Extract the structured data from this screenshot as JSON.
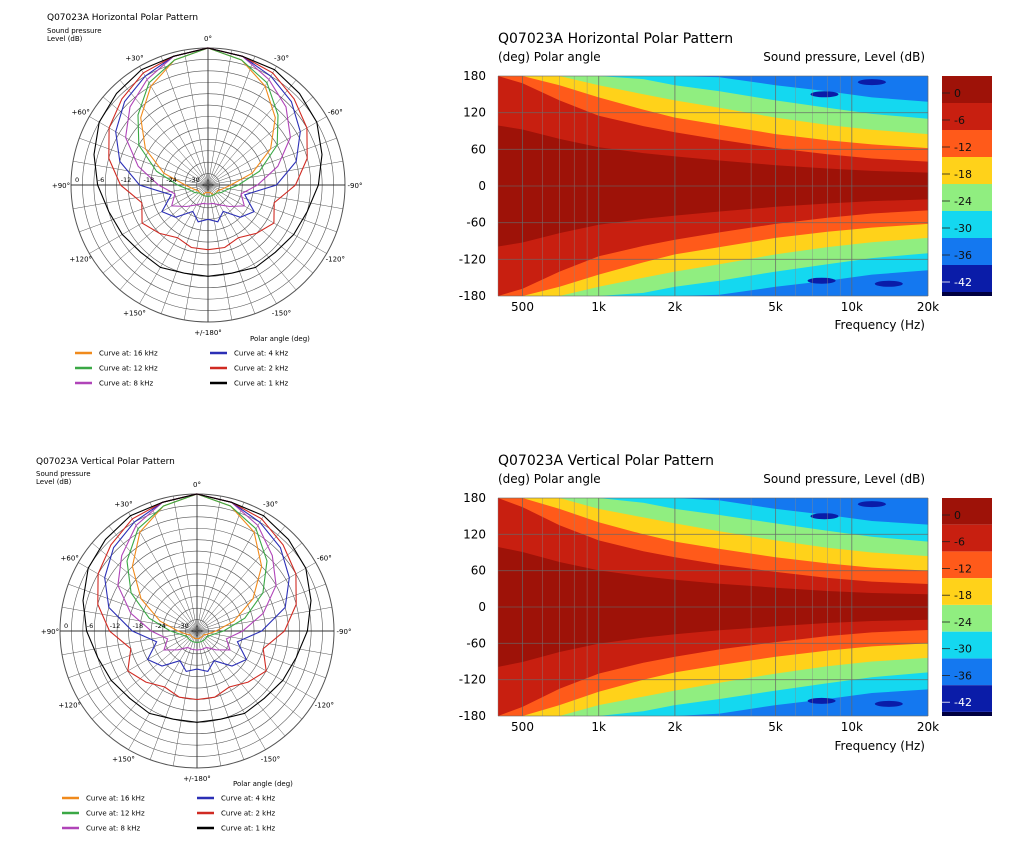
{
  "colors": {
    "curve_16k": "#f08a1c",
    "curve_12k": "#3aa845",
    "curve_8k": "#b044b8",
    "curve_4k": "#2b2fb5",
    "curve_2k": "#d02a22",
    "curve_1k": "#000000",
    "grid": "#555555"
  },
  "chart_data": [
    {
      "type": "polar",
      "title": "Q07023A Horizontal Polar Pattern",
      "rlabel_line1": "Sound pressure",
      "rlabel_line2": "Level  (dB)",
      "angle_axis_label": "Polar angle  (deg)",
      "angle_labels": [
        "0°",
        "-30°",
        "-60°",
        "-90°",
        "-120°",
        "-150°",
        "+/-180°",
        "+150°",
        "+120°",
        "+90°",
        "+60°",
        "+30°"
      ],
      "radial_labels": [
        "0",
        "-6",
        "-12",
        "-18",
        "-24",
        "-30"
      ],
      "rlim": [
        -36,
        0
      ],
      "legend": [
        "Curve at: 16 kHz",
        "Curve at: 12 kHz",
        "Curve at: 8 kHz",
        "Curve at: 4 kHz",
        "Curve at: 2 kHz",
        "Curve at: 1 kHz"
      ],
      "series": [
        {
          "name": "Curve at: 16 kHz",
          "angles": [
            0,
            15,
            30,
            45,
            60,
            75,
            90,
            105,
            120,
            135,
            150,
            165,
            180
          ],
          "values": [
            0,
            -2,
            -6,
            -11,
            -17,
            -24,
            -30,
            -32,
            -33,
            -33,
            -33,
            -34,
            -34
          ]
        },
        {
          "name": "Curve at: 12 kHz",
          "angles": [
            0,
            15,
            30,
            45,
            60,
            75,
            90,
            105,
            120,
            135,
            150,
            165,
            180
          ],
          "values": [
            0,
            -2,
            -5,
            -10,
            -15,
            -22,
            -28,
            -31,
            -32,
            -33,
            -33,
            -33,
            -33
          ]
        },
        {
          "name": "Curve at: 8 kHz",
          "angles": [
            0,
            15,
            30,
            45,
            60,
            75,
            90,
            105,
            120,
            135,
            150,
            165,
            180
          ],
          "values": [
            0,
            -1,
            -4,
            -7,
            -11,
            -17,
            -23,
            -27,
            -25,
            -28,
            -30,
            -31,
            -31
          ]
        },
        {
          "name": "Curve at: 4 kHz",
          "angles": [
            0,
            15,
            30,
            45,
            60,
            75,
            90,
            105,
            120,
            135,
            150,
            165,
            180
          ],
          "values": [
            0,
            -1,
            -3,
            -5,
            -8,
            -12,
            -18,
            -26,
            -22,
            -24,
            -28,
            -26,
            -27
          ]
        },
        {
          "name": "Curve at: 2 kHz",
          "angles": [
            0,
            15,
            30,
            45,
            60,
            75,
            90,
            105,
            120,
            135,
            150,
            165,
            180
          ],
          "values": [
            0,
            -1,
            -2,
            -4,
            -6,
            -9,
            -13,
            -18,
            -16,
            -18,
            -20,
            -19,
            -19
          ]
        },
        {
          "name": "Curve at: 1 kHz",
          "angles": [
            0,
            15,
            30,
            45,
            60,
            75,
            90,
            105,
            120,
            135,
            150,
            165,
            180
          ],
          "values": [
            0,
            -1,
            -1,
            -2,
            -3,
            -5,
            -7,
            -9,
            -10,
            -11,
            -11,
            -12,
            -12
          ]
        }
      ]
    },
    {
      "type": "heatmap",
      "title": "Q07023A Horizontal Polar Pattern",
      "ylabel": "(deg)  Polar angle",
      "clabel": "Sound pressure, Level  (dB)",
      "xlabel": "Frequency  (Hz)",
      "xscale": "log",
      "xlim": [
        400,
        20000
      ],
      "x_ticks": [
        500,
        1000,
        2000,
        5000,
        10000,
        20000
      ],
      "x_tick_labels": [
        "500",
        "1k",
        "2k",
        "5k",
        "10k",
        "20k"
      ],
      "ylim": [
        -180,
        180
      ],
      "y_ticks": [
        180,
        120,
        60,
        0,
        -60,
        -120,
        -180
      ],
      "y_tick_labels": [
        "180",
        "120",
        "60",
        "0",
        "-60",
        "-120",
        "-180"
      ],
      "colorbar_labels": [
        "0",
        "-6",
        "-12",
        "-18",
        "-24",
        "-30",
        "-36",
        "-42"
      ],
      "colorbar_colors": [
        "#9e1208",
        "#c81f10",
        "#ff5a1a",
        "#ffd21a",
        "#90ee80",
        "#14d8f0",
        "#1478f0",
        "#0a1ca8",
        "#000040"
      ],
      "contour_angles": {
        "freqs": [
          400,
          500,
          700,
          1000,
          1500,
          2000,
          3000,
          5000,
          8000,
          12000,
          20000
        ],
        "minus6": [
          180,
          168,
          140,
          115,
          98,
          88,
          76,
          62,
          52,
          45,
          40
        ],
        "minus12": [
          180,
          180,
          165,
          145,
          125,
          112,
          100,
          85,
          75,
          68,
          62
        ],
        "minus18": [
          180,
          180,
          180,
          165,
          150,
          140,
          128,
          112,
          100,
          92,
          85
        ],
        "minus24": [
          180,
          180,
          180,
          180,
          175,
          165,
          155,
          140,
          128,
          118,
          110
        ],
        "minus30": [
          180,
          180,
          180,
          180,
          180,
          180,
          178,
          165,
          155,
          145,
          138
        ]
      }
    },
    {
      "type": "polar",
      "title": "Q07023A Vertical Polar Pattern",
      "rlabel_line1": "Sound pressure",
      "rlabel_line2": "Level  (dB)",
      "angle_axis_label": "Polar angle  (deg)",
      "angle_labels": [
        "0°",
        "-30°",
        "-60°",
        "-90°",
        "-120°",
        "-150°",
        "+/-180°",
        "+150°",
        "+120°",
        "+90°",
        "+60°",
        "+30°"
      ],
      "radial_labels": [
        "0",
        "-6",
        "-12",
        "-18",
        "-24",
        "-30"
      ],
      "rlim": [
        -36,
        0
      ],
      "legend": [
        "Curve at: 16 kHz",
        "Curve at: 12 kHz",
        "Curve at: 8 kHz",
        "Curve at: 4 kHz",
        "Curve at: 2 kHz",
        "Curve at: 1 kHz"
      ],
      "series": [
        {
          "name": "Curve at: 16 kHz",
          "angles": [
            0,
            15,
            30,
            45,
            60,
            75,
            90,
            105,
            120,
            135,
            150,
            165,
            180
          ],
          "values": [
            0,
            -2,
            -6,
            -12,
            -19,
            -26,
            -31,
            -33,
            -34,
            -34,
            -34,
            -34,
            -34
          ]
        },
        {
          "name": "Curve at: 12 kHz",
          "angles": [
            0,
            15,
            30,
            45,
            60,
            75,
            90,
            105,
            120,
            135,
            150,
            165,
            180
          ],
          "values": [
            0,
            -2,
            -5,
            -10,
            -16,
            -23,
            -29,
            -32,
            -33,
            -33,
            -33,
            -33,
            -33
          ]
        },
        {
          "name": "Curve at: 8 kHz",
          "angles": [
            0,
            15,
            30,
            45,
            60,
            75,
            90,
            105,
            120,
            135,
            150,
            165,
            180
          ],
          "values": [
            0,
            -1,
            -4,
            -8,
            -12,
            -18,
            -24,
            -28,
            -26,
            -29,
            -31,
            -31,
            -31
          ]
        },
        {
          "name": "Curve at: 4 kHz",
          "angles": [
            0,
            15,
            30,
            45,
            60,
            75,
            90,
            105,
            120,
            135,
            150,
            165,
            180
          ],
          "values": [
            0,
            -1,
            -3,
            -5,
            -8,
            -12,
            -19,
            -25,
            -21,
            -23,
            -27,
            -25,
            -26
          ]
        },
        {
          "name": "Curve at: 2 kHz",
          "angles": [
            0,
            15,
            30,
            45,
            60,
            75,
            90,
            105,
            120,
            135,
            150,
            165,
            180
          ],
          "values": [
            0,
            -1,
            -2,
            -4,
            -6,
            -9,
            -13,
            -18,
            -15,
            -17,
            -19,
            -18,
            -18
          ]
        },
        {
          "name": "Curve at: 1 kHz",
          "angles": [
            0,
            15,
            30,
            45,
            60,
            75,
            90,
            105,
            120,
            135,
            150,
            165,
            180
          ],
          "values": [
            0,
            -1,
            -1,
            -2,
            -3,
            -5,
            -7,
            -9,
            -10,
            -11,
            -11,
            -12,
            -12
          ]
        }
      ]
    },
    {
      "type": "heatmap",
      "title": "Q07023A Vertical Polar Pattern",
      "ylabel": "(deg)  Polar angle",
      "clabel": "Sound pressure, Level  (dB)",
      "xlabel": "Frequency  (Hz)",
      "xscale": "log",
      "xlim": [
        400,
        20000
      ],
      "x_ticks": [
        500,
        1000,
        2000,
        5000,
        10000,
        20000
      ],
      "x_tick_labels": [
        "500",
        "1k",
        "2k",
        "5k",
        "10k",
        "20k"
      ],
      "ylim": [
        -180,
        180
      ],
      "y_ticks": [
        180,
        120,
        60,
        0,
        -60,
        -120,
        -180
      ],
      "y_tick_labels": [
        "180",
        "120",
        "60",
        "0",
        "-60",
        "-120",
        "-180"
      ],
      "colorbar_labels": [
        "0",
        "-6",
        "-12",
        "-18",
        "-24",
        "-30",
        "-36",
        "-42"
      ],
      "colorbar_colors": [
        "#9e1208",
        "#c81f10",
        "#ff5a1a",
        "#ffd21a",
        "#90ee80",
        "#14d8f0",
        "#1478f0",
        "#0a1ca8",
        "#000040"
      ],
      "contour_angles": {
        "freqs": [
          400,
          500,
          700,
          1000,
          1500,
          2000,
          3000,
          5000,
          8000,
          12000,
          20000
        ],
        "minus6": [
          180,
          165,
          135,
          110,
          92,
          82,
          70,
          58,
          48,
          42,
          38
        ],
        "minus12": [
          180,
          180,
          162,
          140,
          120,
          108,
          96,
          82,
          72,
          65,
          60
        ],
        "minus18": [
          180,
          180,
          180,
          162,
          148,
          138,
          125,
          110,
          98,
          90,
          84
        ],
        "minus24": [
          180,
          180,
          180,
          180,
          172,
          162,
          152,
          138,
          126,
          116,
          108
        ],
        "minus30": [
          180,
          180,
          180,
          180,
          180,
          180,
          176,
          162,
          152,
          142,
          136
        ]
      }
    }
  ]
}
